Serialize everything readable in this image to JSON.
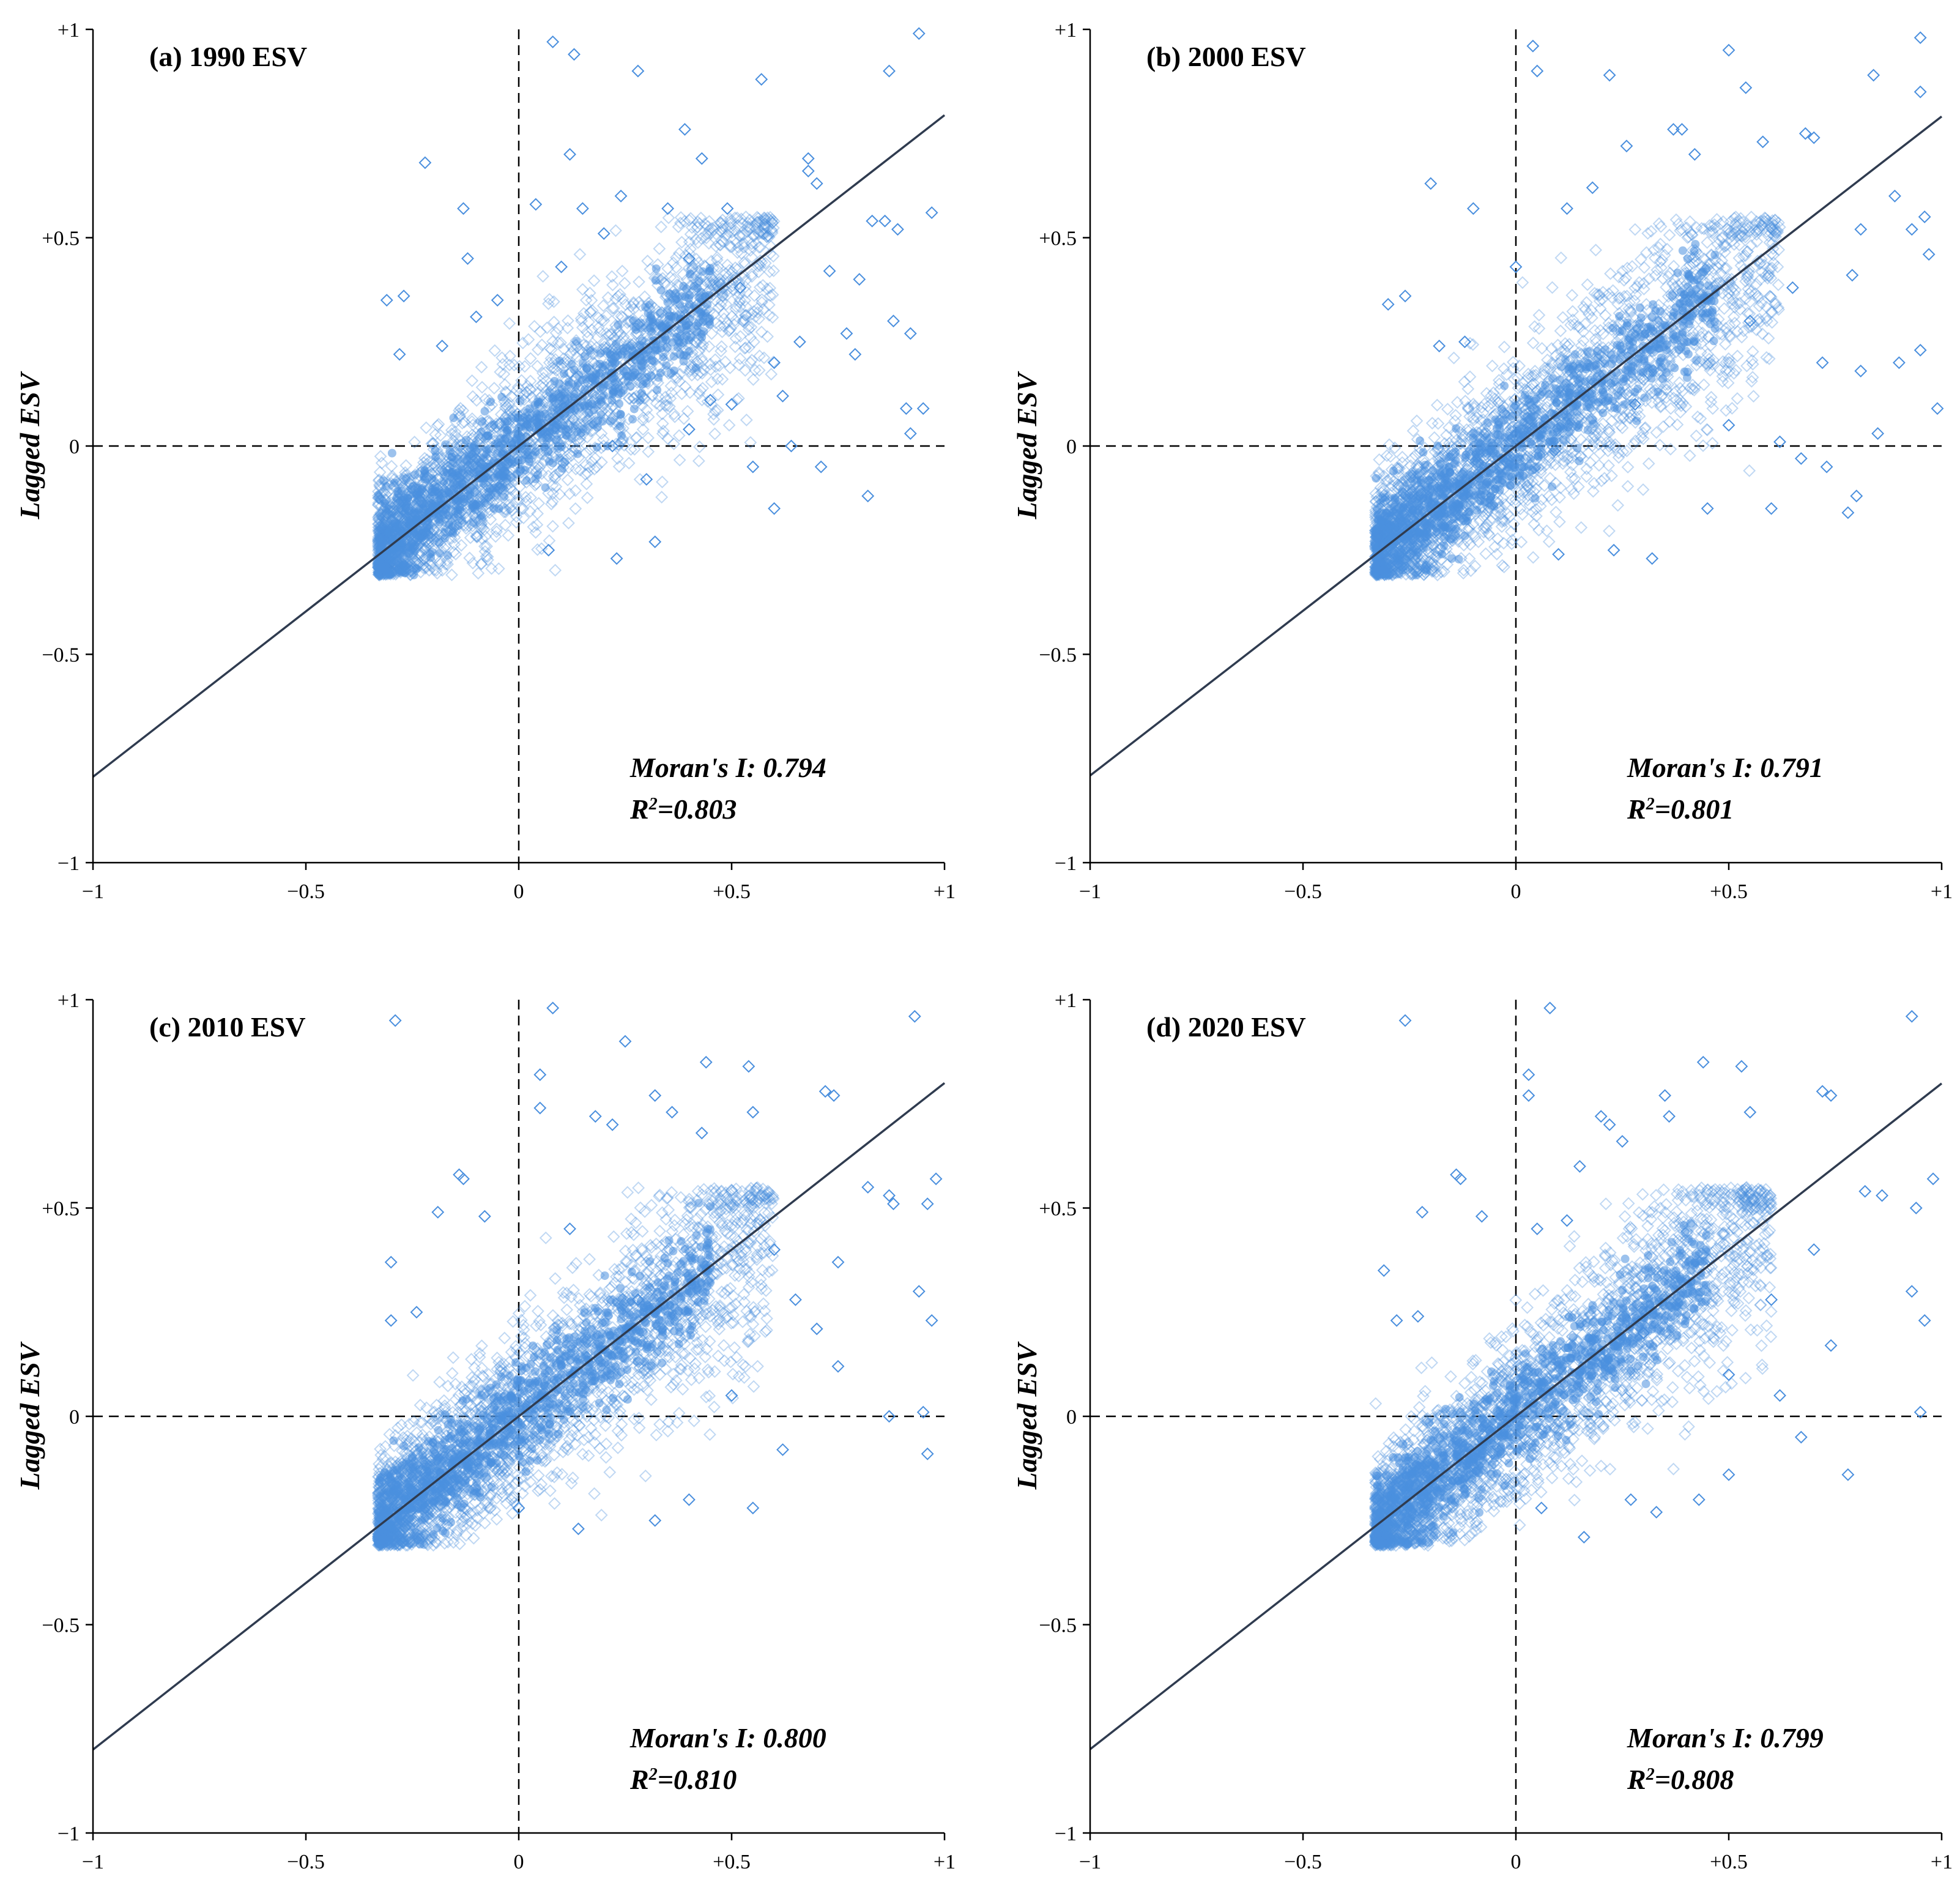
{
  "chart_data": [
    {
      "type": "scatter",
      "title": "(a) 1990 ESV",
      "ylabel": "Lagged ESV",
      "xlabel": "",
      "xlim": [
        -1,
        1
      ],
      "ylim": [
        -1,
        1
      ],
      "x_ticks": [
        "−1",
        "−0.5",
        "0",
        "+0.5",
        "+1"
      ],
      "y_ticks": [
        "+1",
        "+0.5",
        "0",
        "−0.5",
        "−1"
      ],
      "moran_label": "Moran's I: 0.794",
      "r2_prefix": "R",
      "r2_sup": "2",
      "r2_value": "=0.803",
      "morans_i": 0.794,
      "r_squared": 0.803,
      "fit_line": {
        "slope": 0.794,
        "intercept": 0
      },
      "outliers": [
        [
          0.08,
          0.97
        ],
        [
          0.13,
          0.94
        ],
        [
          0.28,
          0.9
        ],
        [
          0.57,
          0.88
        ],
        [
          0.94,
          0.99
        ],
        [
          0.87,
          0.9
        ],
        [
          -0.22,
          0.68
        ],
        [
          0.39,
          0.76
        ],
        [
          0.68,
          0.69
        ],
        [
          0.68,
          0.66
        ],
        [
          0.7,
          0.63
        ],
        [
          0.12,
          0.7
        ],
        [
          0.43,
          0.69
        ],
        [
          -0.13,
          0.57
        ],
        [
          0.15,
          0.57
        ],
        [
          0.35,
          0.57
        ],
        [
          0.49,
          0.57
        ],
        [
          0.97,
          0.56
        ],
        [
          0.83,
          0.54
        ],
        [
          0.86,
          0.54
        ],
        [
          0.89,
          0.52
        ],
        [
          0.73,
          0.42
        ],
        [
          0.8,
          0.4
        ],
        [
          0.88,
          0.3
        ],
        [
          0.92,
          0.27
        ],
        [
          0.95,
          0.09
        ],
        [
          0.91,
          0.09
        ],
        [
          0.92,
          0.03
        ],
        [
          0.79,
          0.22
        ],
        [
          0.82,
          -0.12
        ],
        [
          0.64,
          0.0
        ],
        [
          0.6,
          -0.15
        ],
        [
          0.45,
          0.11
        ],
        [
          0.4,
          0.04
        ],
        [
          0.32,
          -0.23
        ],
        [
          0.23,
          -0.27
        ],
        [
          0.07,
          -0.25
        ],
        [
          -0.1,
          0.31
        ],
        [
          -0.05,
          0.35
        ],
        [
          0.22,
          0.0
        ],
        [
          0.3,
          -0.08
        ],
        [
          0.5,
          0.1
        ],
        [
          0.55,
          -0.05
        ],
        [
          0.71,
          -0.05
        ],
        [
          0.77,
          0.27
        ],
        [
          0.66,
          0.25
        ],
        [
          0.6,
          0.2
        ],
        [
          0.4,
          0.45
        ],
        [
          0.24,
          0.6
        ],
        [
          0.1,
          0.43
        ],
        [
          -0.31,
          0.35
        ],
        [
          -0.28,
          0.22
        ],
        [
          -0.27,
          0.36
        ],
        [
          -0.18,
          0.24
        ],
        [
          -0.12,
          0.45
        ],
        [
          0.04,
          0.58
        ],
        [
          0.2,
          0.51
        ],
        [
          0.62,
          0.12
        ],
        [
          0.52,
          0.38
        ]
      ],
      "cluster": {
        "x_min": -0.33,
        "x_max": 0.6,
        "slope": 0.78,
        "y_floor": -0.31,
        "y_spread": 0.13
      }
    },
    {
      "type": "scatter",
      "title": "(b) 2000 ESV",
      "ylabel": "Lagged ESV",
      "xlabel": "",
      "xlim": [
        -1,
        1
      ],
      "ylim": [
        -1,
        1
      ],
      "x_ticks": [
        "−1",
        "−0.5",
        "0",
        "+0.5",
        "+1"
      ],
      "y_ticks": [
        "+1",
        "+0.5",
        "0",
        "−0.5",
        "−1"
      ],
      "moran_label": "Moran's I: 0.791",
      "r2_prefix": "R",
      "r2_sup": "2",
      "r2_value": "=0.801",
      "morans_i": 0.791,
      "r_squared": 0.801,
      "fit_line": {
        "slope": 0.791,
        "intercept": 0
      },
      "outliers": [
        [
          0.04,
          0.96
        ],
        [
          0.05,
          0.9
        ],
        [
          0.5,
          0.95
        ],
        [
          0.95,
          0.98
        ],
        [
          0.95,
          0.85
        ],
        [
          0.84,
          0.89
        ],
        [
          0.54,
          0.86
        ],
        [
          0.22,
          0.89
        ],
        [
          0.26,
          0.72
        ],
        [
          0.37,
          0.76
        ],
        [
          0.39,
          0.76
        ],
        [
          0.58,
          0.73
        ],
        [
          0.68,
          0.75
        ],
        [
          0.7,
          0.74
        ],
        [
          0.81,
          0.52
        ],
        [
          0.89,
          0.6
        ],
        [
          0.93,
          0.52
        ],
        [
          0.96,
          0.55
        ],
        [
          0.97,
          0.46
        ],
        [
          0.99,
          0.09
        ],
        [
          0.9,
          0.2
        ],
        [
          0.95,
          0.23
        ],
        [
          0.85,
          0.03
        ],
        [
          0.79,
          0.41
        ],
        [
          0.81,
          0.18
        ],
        [
          0.62,
          0.01
        ],
        [
          0.67,
          -0.03
        ],
        [
          0.73,
          -0.05
        ],
        [
          0.6,
          -0.15
        ],
        [
          0.8,
          -0.12
        ],
        [
          0.78,
          -0.16
        ],
        [
          0.32,
          -0.27
        ],
        [
          0.23,
          -0.25
        ],
        [
          0.1,
          -0.26
        ],
        [
          0.28,
          0.1
        ],
        [
          0.45,
          -0.15
        ],
        [
          0.5,
          0.05
        ],
        [
          -0.2,
          0.63
        ],
        [
          -0.1,
          0.57
        ],
        [
          0.0,
          0.43
        ],
        [
          0.12,
          0.57
        ],
        [
          0.18,
          0.62
        ],
        [
          -0.3,
          0.34
        ],
        [
          -0.26,
          0.36
        ],
        [
          -0.18,
          0.24
        ],
        [
          -0.12,
          0.25
        ],
        [
          0.65,
          0.38
        ],
        [
          0.55,
          0.3
        ],
        [
          0.72,
          0.2
        ],
        [
          0.42,
          0.7
        ]
      ],
      "cluster": {
        "x_min": -0.33,
        "x_max": 0.62,
        "slope": 0.78,
        "y_floor": -0.31,
        "y_spread": 0.13
      }
    },
    {
      "type": "scatter",
      "title": "(c) 2010 ESV",
      "ylabel": "Lagged ESV",
      "xlabel": "",
      "xlim": [
        -1,
        1
      ],
      "ylim": [
        -1,
        1
      ],
      "x_ticks": [
        "−1",
        "−0.5",
        "0",
        "+0.5",
        "+1"
      ],
      "y_ticks": [
        "+1",
        "+0.5",
        "0",
        "−0.5",
        "−1"
      ],
      "moran_label": "Moran's I: 0.800",
      "r2_prefix": "R",
      "r2_sup": "2",
      "r2_value": "=0.810",
      "morans_i": 0.8,
      "r_squared": 0.81,
      "fit_line": {
        "slope": 0.8,
        "intercept": 0
      },
      "outliers": [
        [
          -0.29,
          0.95
        ],
        [
          0.08,
          0.98
        ],
        [
          0.25,
          0.9
        ],
        [
          0.93,
          0.96
        ],
        [
          0.05,
          0.82
        ],
        [
          0.44,
          0.85
        ],
        [
          0.54,
          0.84
        ],
        [
          0.05,
          0.74
        ],
        [
          0.18,
          0.72
        ],
        [
          0.22,
          0.7
        ],
        [
          0.32,
          0.77
        ],
        [
          0.36,
          0.73
        ],
        [
          0.43,
          0.68
        ],
        [
          0.55,
          0.73
        ],
        [
          0.72,
          0.78
        ],
        [
          0.74,
          0.77
        ],
        [
          0.98,
          0.57
        ],
        [
          0.82,
          0.55
        ],
        [
          0.87,
          0.53
        ],
        [
          0.88,
          0.51
        ],
        [
          0.96,
          0.51
        ],
        [
          0.94,
          0.3
        ],
        [
          0.97,
          0.23
        ],
        [
          0.95,
          0.01
        ],
        [
          0.87,
          0.0
        ],
        [
          0.96,
          -0.09
        ],
        [
          0.62,
          -0.08
        ],
        [
          0.55,
          -0.22
        ],
        [
          0.4,
          -0.2
        ],
        [
          0.32,
          -0.25
        ],
        [
          0.14,
          -0.27
        ],
        [
          0.0,
          -0.22
        ],
        [
          -0.14,
          0.58
        ],
        [
          -0.13,
          0.57
        ],
        [
          -0.19,
          0.49
        ],
        [
          -0.3,
          0.37
        ],
        [
          -0.3,
          0.23
        ],
        [
          -0.24,
          0.25
        ],
        [
          -0.08,
          0.48
        ],
        [
          0.75,
          0.37
        ],
        [
          0.7,
          0.21
        ],
        [
          0.75,
          0.12
        ],
        [
          0.65,
          0.28
        ],
        [
          0.6,
          0.4
        ],
        [
          0.5,
          0.05
        ],
        [
          0.28,
          0.28
        ],
        [
          0.12,
          0.45
        ]
      ],
      "cluster": {
        "x_min": -0.33,
        "x_max": 0.6,
        "slope": 0.8,
        "y_floor": -0.31,
        "y_spread": 0.13
      }
    },
    {
      "type": "scatter",
      "title": "(d) 2020 ESV",
      "ylabel": "Lagged ESV",
      "xlabel": "",
      "xlim": [
        -1,
        1
      ],
      "ylim": [
        -1,
        1
      ],
      "x_ticks": [
        "−1",
        "−0.5",
        "0",
        "+0.5",
        "+1"
      ],
      "y_ticks": [
        "+1",
        "+0.5",
        "0",
        "−0.5",
        "−1"
      ],
      "moran_label": "Moran's I: 0.799",
      "r2_prefix": "R",
      "r2_sup": "2",
      "r2_value": "=0.808",
      "morans_i": 0.799,
      "r_squared": 0.808,
      "fit_line": {
        "slope": 0.799,
        "intercept": 0
      },
      "outliers": [
        [
          -0.26,
          0.95
        ],
        [
          0.08,
          0.98
        ],
        [
          0.93,
          0.96
        ],
        [
          0.03,
          0.82
        ],
        [
          0.44,
          0.85
        ],
        [
          0.53,
          0.84
        ],
        [
          0.03,
          0.77
        ],
        [
          0.2,
          0.72
        ],
        [
          0.22,
          0.7
        ],
        [
          0.35,
          0.77
        ],
        [
          0.36,
          0.72
        ],
        [
          0.55,
          0.73
        ],
        [
          0.72,
          0.78
        ],
        [
          0.74,
          0.77
        ],
        [
          0.98,
          0.57
        ],
        [
          0.82,
          0.54
        ],
        [
          0.86,
          0.53
        ],
        [
          0.94,
          0.5
        ],
        [
          0.93,
          0.3
        ],
        [
          0.96,
          0.23
        ],
        [
          0.95,
          0.01
        ],
        [
          0.78,
          -0.14
        ],
        [
          0.67,
          -0.05
        ],
        [
          0.5,
          -0.14
        ],
        [
          0.43,
          -0.2
        ],
        [
          0.33,
          -0.23
        ],
        [
          0.27,
          -0.2
        ],
        [
          0.16,
          -0.29
        ],
        [
          0.06,
          -0.22
        ],
        [
          -0.14,
          0.58
        ],
        [
          -0.13,
          0.57
        ],
        [
          -0.22,
          0.49
        ],
        [
          -0.31,
          0.35
        ],
        [
          -0.28,
          0.23
        ],
        [
          -0.23,
          0.24
        ],
        [
          -0.08,
          0.48
        ],
        [
          0.05,
          0.45
        ],
        [
          0.12,
          0.47
        ],
        [
          0.7,
          0.4
        ],
        [
          0.74,
          0.17
        ],
        [
          0.6,
          0.28
        ],
        [
          0.62,
          0.05
        ],
        [
          0.5,
          0.1
        ],
        [
          0.3,
          0.2
        ],
        [
          0.15,
          0.6
        ],
        [
          0.25,
          0.66
        ]
      ],
      "cluster": {
        "x_min": -0.33,
        "x_max": 0.6,
        "slope": 0.8,
        "y_floor": -0.31,
        "y_spread": 0.13
      }
    }
  ]
}
